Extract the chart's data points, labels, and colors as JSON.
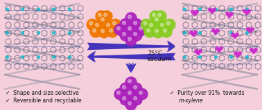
{
  "background_color": "#f5d0dc",
  "border_color": "#88ccdd",
  "left_text_1": "✓  Shape and size selective",
  "left_text_2": "✓  Reversible and recyclable",
  "right_text_1": "✓  Purity over 91%  towards",
  "right_text_2": "m-xylene",
  "arrow_color": "#4433bb",
  "arrow_label_1": "75°C",
  "arrow_label_2": "vacuum",
  "text_color": "#111111",
  "orange_color": "#ee7700",
  "purple_color": "#aa22bb",
  "green_color": "#88cc22",
  "crystal_bg": "#e8d8e8",
  "crystal_line": "#444466",
  "crystal_blue": "#2244aa",
  "crystal_teal": "#00bbcc",
  "crystal_purple": "#cc22cc",
  "figsize": [
    3.78,
    1.59
  ],
  "dpi": 100
}
